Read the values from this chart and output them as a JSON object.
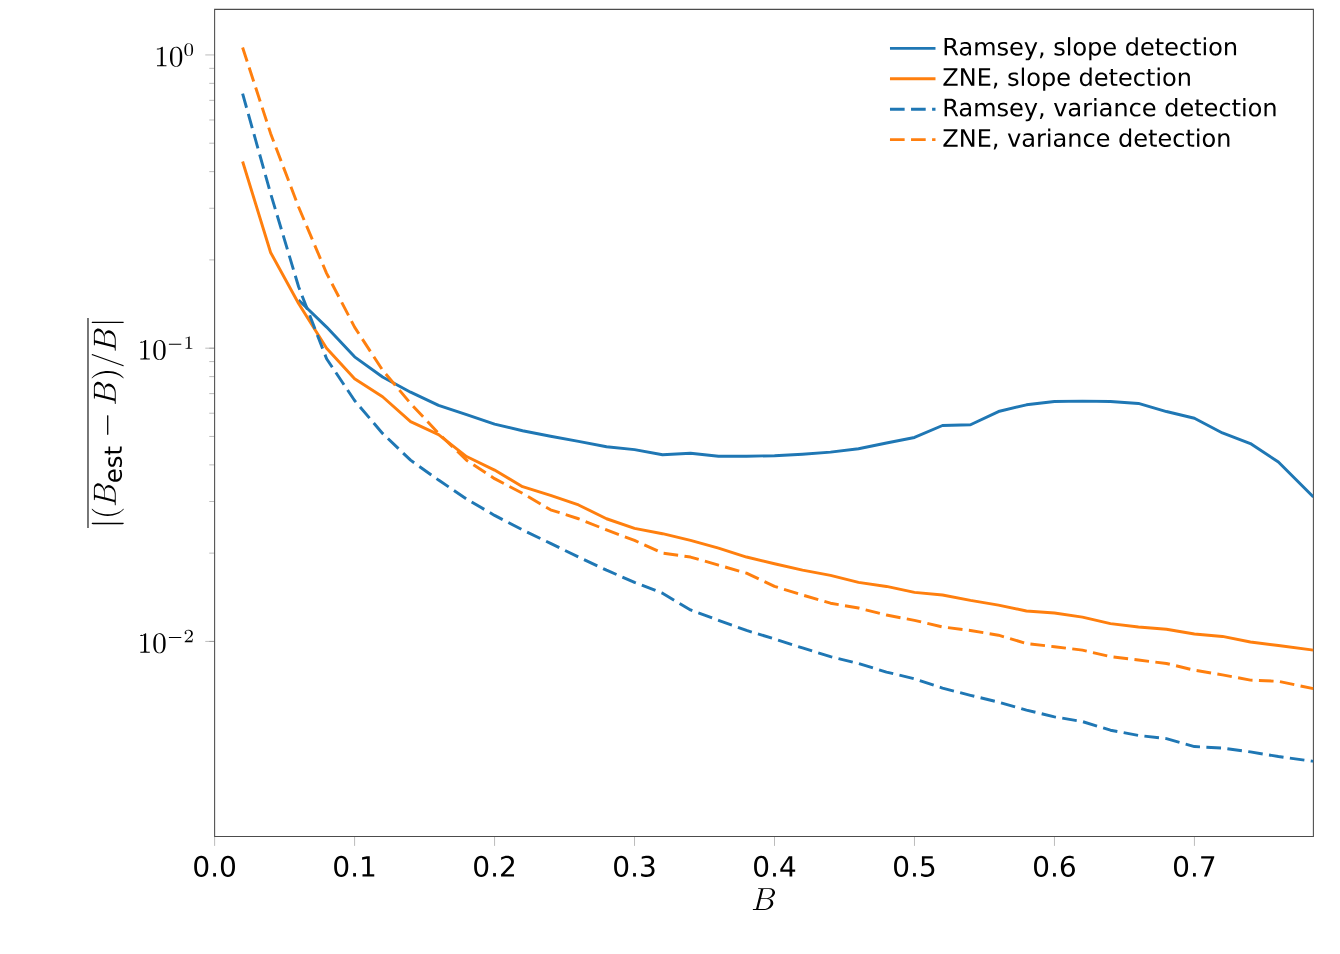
{
  "chart_data": {
    "type": "line",
    "xlabel": "B",
    "ylabel": "\\overline{|(B_{\\mathrm{est}}-B)/B|}",
    "x": [
      0.02,
      0.04,
      0.06,
      0.08,
      0.1,
      0.12,
      0.14,
      0.16,
      0.18,
      0.2,
      0.22,
      0.24,
      0.26,
      0.28,
      0.3,
      0.32,
      0.34,
      0.36,
      0.38,
      0.4,
      0.42,
      0.44,
      0.46,
      0.48,
      0.5,
      0.52,
      0.54,
      0.56,
      0.58,
      0.6,
      0.62,
      0.64,
      0.66,
      0.68,
      0.7,
      0.72,
      0.74,
      0.76,
      0.785
    ],
    "series": [
      {
        "name": "Ramsey, slope detection",
        "color": "#1f77b4",
        "line_style": "solid",
        "values": [
          null,
          null,
          0.146,
          0.118,
          0.0934,
          0.0798,
          0.0708,
          0.0638,
          0.0593,
          0.0551,
          0.0523,
          0.0501,
          0.0481,
          0.0461,
          0.0451,
          0.0433,
          0.0438,
          0.0428,
          0.0428,
          0.043,
          0.0435,
          0.0442,
          0.0454,
          0.0475,
          0.0496,
          0.0545,
          0.0548,
          0.0608,
          0.0641,
          0.0658,
          0.066,
          0.0658,
          0.0648,
          0.0608,
          0.0577,
          0.0514,
          0.0473,
          0.0409,
          0.0311
        ]
      },
      {
        "name": "ZNE, slope detection",
        "color": "#ff7f0e",
        "line_style": "solid",
        "values": [
          0.433,
          0.212,
          0.142,
          0.1,
          0.0786,
          0.0683,
          0.0562,
          0.0507,
          0.0427,
          0.0384,
          0.0337,
          0.0315,
          0.0292,
          0.0262,
          0.0243,
          0.0233,
          0.0221,
          0.0208,
          0.0194,
          0.0184,
          0.0175,
          0.0168,
          0.0159,
          0.0154,
          0.0147,
          0.0144,
          0.0138,
          0.0133,
          0.0127,
          0.0125,
          0.0121,
          0.0115,
          0.0112,
          0.011,
          0.0106,
          0.0104,
          0.00995,
          0.00969,
          0.00934
        ]
      },
      {
        "name": "Ramsey, variance detection",
        "color": "#1f77b4",
        "line_style": "dashed",
        "values": [
          0.738,
          0.337,
          0.162,
          0.092,
          0.0663,
          0.0512,
          0.0415,
          0.0355,
          0.0306,
          0.0269,
          0.024,
          0.0216,
          0.0194,
          0.0175,
          0.0159,
          0.0146,
          0.0128,
          0.0118,
          0.0109,
          0.0102,
          0.0095,
          0.00887,
          0.00841,
          0.00786,
          0.00746,
          0.00693,
          0.00655,
          0.00621,
          0.00583,
          0.00553,
          0.00533,
          0.00498,
          0.00478,
          0.00466,
          0.00438,
          0.00433,
          0.0042,
          0.00405,
          0.0039
        ]
      },
      {
        "name": "ZNE, variance detection",
        "color": "#ff7f0e",
        "line_style": "dashed",
        "values": [
          1.06,
          0.54,
          0.303,
          0.18,
          0.118,
          0.0841,
          0.0648,
          0.0512,
          0.0415,
          0.0359,
          0.032,
          0.0281,
          0.0262,
          0.024,
          0.0221,
          0.02,
          0.0194,
          0.0182,
          0.0171,
          0.0154,
          0.0144,
          0.0135,
          0.013,
          0.0123,
          0.0118,
          0.0112,
          0.0109,
          0.0105,
          0.00984,
          0.00959,
          0.00934,
          0.00887,
          0.00864,
          0.00841,
          0.00798,
          0.00769,
          0.00738,
          0.00731,
          0.0069
        ]
      }
    ],
    "log": "y",
    "xlim": [
      0,
      0.785
    ],
    "ylim": [
      0.00216,
      1.43
    ],
    "xticks": [
      {
        "value": 0,
        "label": "0.0"
      },
      0.1,
      0.2,
      0.3,
      0.4,
      0.5,
      0.6,
      0.7
    ],
    "yticks": [
      {
        "value": 0.01,
        "label": "10^{-2}"
      },
      {
        "value": 0.1,
        "label": "10^{-1}"
      },
      {
        "value": 1,
        "label": "10^{0}"
      }
    ],
    "grid": false,
    "legend": "top right",
    "marker": "none"
  }
}
